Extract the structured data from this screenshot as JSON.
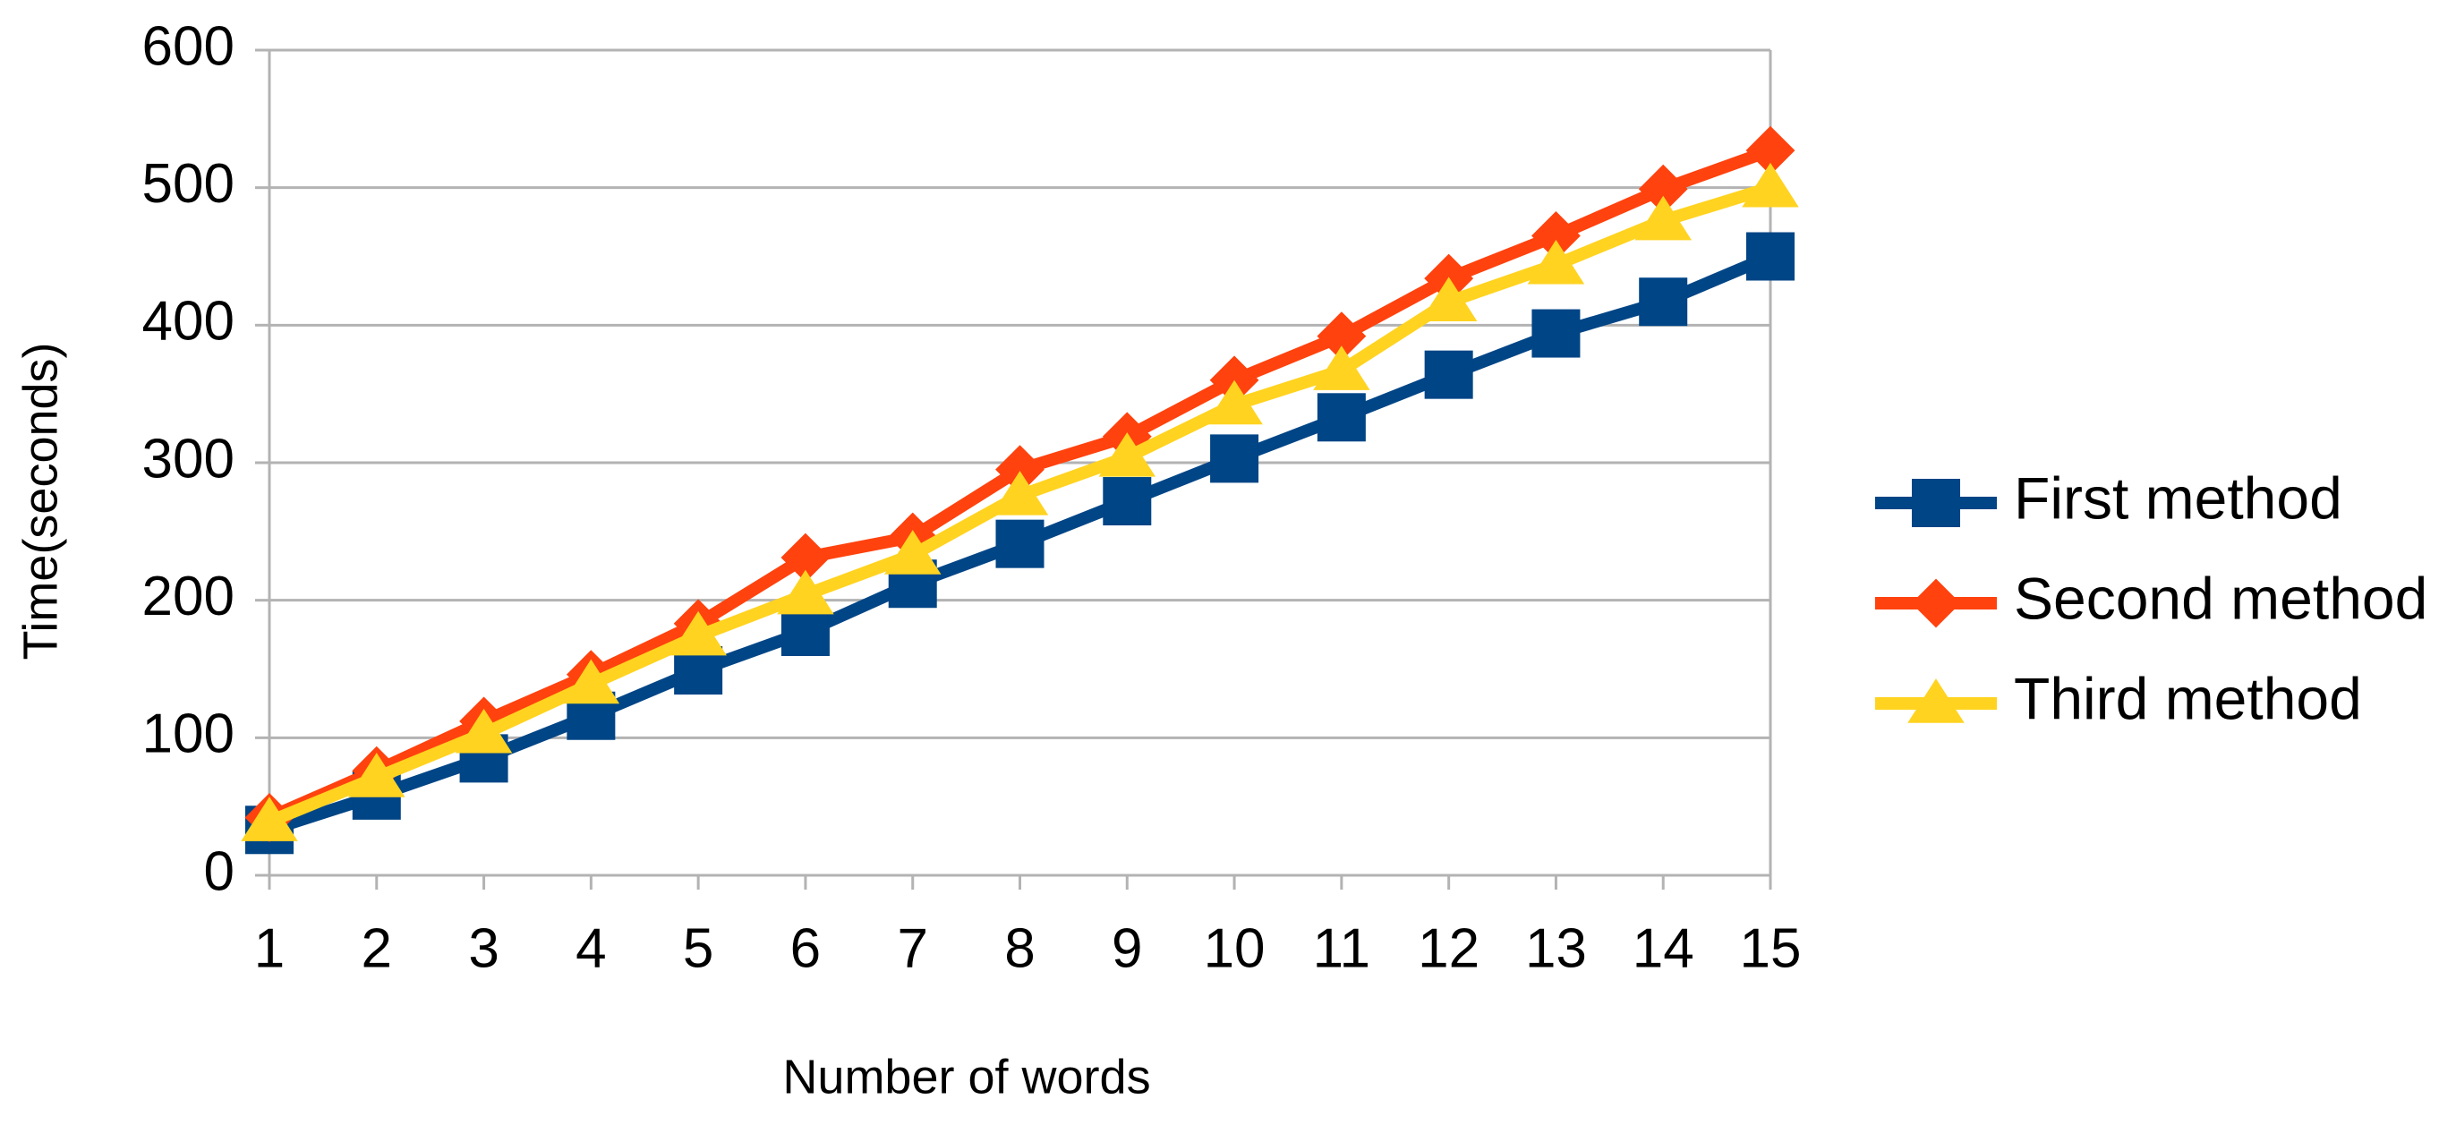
{
  "chart_data": {
    "type": "line",
    "x_label": "Number of words",
    "y_label": "Time(seconds)",
    "categories": [
      "1",
      "2",
      "3",
      "4",
      "5",
      "6",
      "7",
      "8",
      "9",
      "10",
      "11",
      "12",
      "13",
      "14",
      "15"
    ],
    "series": [
      {
        "name": "First method",
        "color": "#004586",
        "marker": "square",
        "values": [
          33,
          58,
          85,
          116,
          149,
          177,
          212,
          241,
          272,
          303,
          333,
          364,
          394,
          417,
          450
        ]
      },
      {
        "name": "Second method",
        "color": "#ff420e",
        "marker": "diamond",
        "values": [
          42,
          76,
          112,
          146,
          183,
          231,
          246,
          295,
          319,
          360,
          392,
          434,
          465,
          499,
          527
        ]
      },
      {
        "name": "Third method",
        "color": "#ffd320",
        "marker": "triangle",
        "values": [
          39,
          71,
          103,
          139,
          174,
          204,
          233,
          276,
          304,
          342,
          367,
          417,
          444,
          476,
          500
        ]
      }
    ],
    "ylim": [
      0,
      600
    ],
    "yticks": [
      0,
      100,
      200,
      300,
      400,
      500,
      600
    ],
    "grid": true,
    "legend": "right"
  }
}
